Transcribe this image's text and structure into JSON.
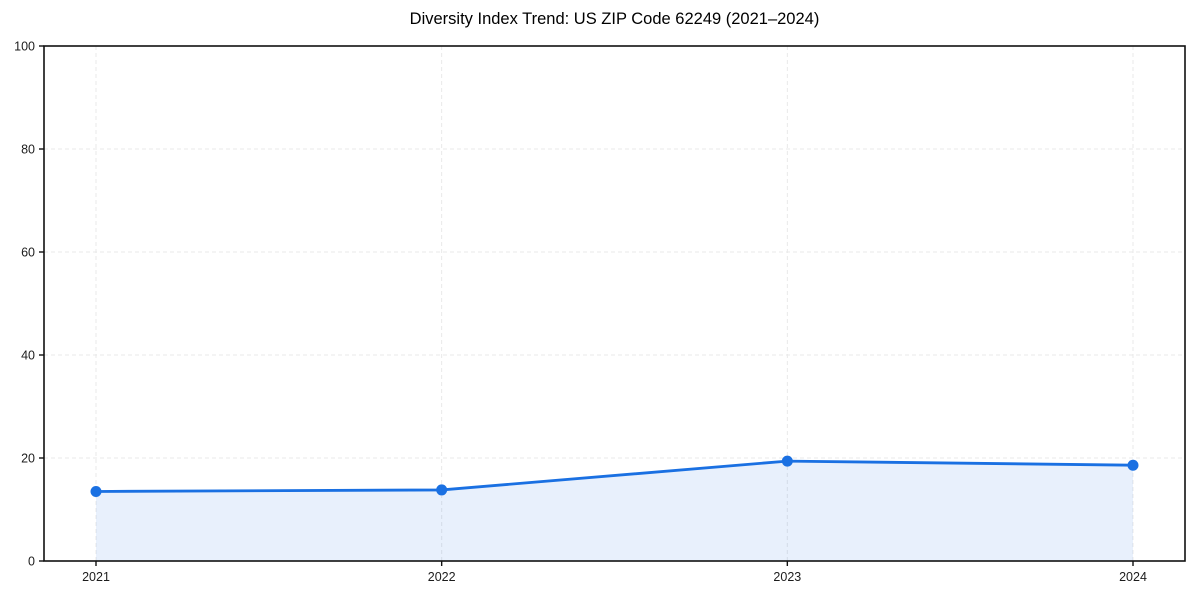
{
  "page": {
    "background": "#ffffff"
  },
  "chart_data": {
    "type": "area",
    "title": "Diversity Index Trend: US ZIP Code 62249 (2021–2024)",
    "categories": [
      "2021",
      "2022",
      "2023",
      "2024"
    ],
    "series": [
      {
        "name": "Diversity Index",
        "values": [
          13.5,
          13.8,
          19.4,
          18.6
        ]
      }
    ],
    "xlabel": "",
    "ylabel": "",
    "ylim": [
      0,
      100
    ],
    "yticks": [
      0,
      20,
      40,
      60,
      80,
      100
    ],
    "grid": true,
    "grid_style": "dashed",
    "legend": false,
    "colors": {
      "line": "#1a70e2",
      "marker": "#1a70e2",
      "fill_opacity": 0.1,
      "gridline": "#e9e9e9",
      "spine": "#111111",
      "tick_label": "#1c1c1c",
      "title": "#000000"
    }
  }
}
